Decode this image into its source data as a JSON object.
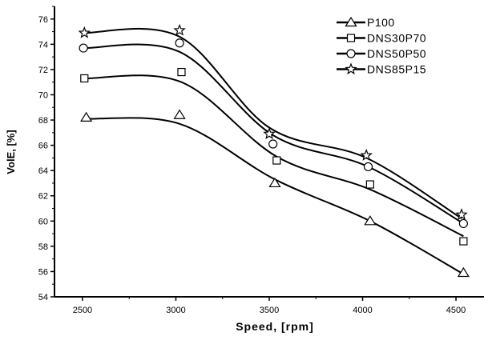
{
  "chart_data": {
    "type": "line",
    "xlabel": "Speed, [rpm]",
    "ylabel": "VolE, [%]",
    "xlim": [
      2350,
      4650
    ],
    "ylim": [
      54,
      77
    ],
    "x_ticks": [
      2500,
      3000,
      3500,
      4000,
      4500
    ],
    "y_ticks": [
      54,
      56,
      58,
      60,
      62,
      64,
      66,
      68,
      70,
      72,
      74,
      76
    ],
    "x_tick_labels": [
      "2500",
      "3000",
      "3500",
      "4000",
      "4500"
    ],
    "y_tick_labels": [
      "54",
      "56",
      "58",
      "60",
      "62",
      "64",
      "66",
      "68",
      "70",
      "72",
      "74",
      "76"
    ],
    "grid": false,
    "legend_position": "top-right",
    "series": [
      {
        "name": "P100",
        "marker": "triangle",
        "x": [
          2520,
          3020,
          3530,
          4040,
          4540
        ],
        "y": [
          68.2,
          68.4,
          63.0,
          60.0,
          55.9
        ],
        "fit": [
          68.1,
          67.7,
          63.3,
          60.0,
          55.8
        ]
      },
      {
        "name": "DNS30P70",
        "marker": "square",
        "x": [
          2510,
          3030,
          3540,
          4040,
          4540
        ],
        "y": [
          71.3,
          71.8,
          64.8,
          62.9,
          58.4
        ],
        "fit": [
          71.3,
          71.0,
          65.1,
          62.5,
          58.8
        ]
      },
      {
        "name": "DNS50P50",
        "marker": "circle",
        "x": [
          2505,
          3020,
          3520,
          4030,
          4540
        ],
        "y": [
          73.7,
          74.1,
          66.1,
          64.3,
          59.8
        ],
        "fit": [
          73.7,
          73.4,
          66.8,
          64.3,
          59.8
        ]
      },
      {
        "name": "DNS85P15",
        "marker": "star",
        "x": [
          2510,
          3020,
          3500,
          4020,
          4530
        ],
        "y": [
          74.9,
          75.1,
          66.9,
          65.2,
          60.5
        ],
        "fit": [
          74.9,
          74.6,
          67.4,
          65.0,
          60.2
        ]
      }
    ]
  }
}
